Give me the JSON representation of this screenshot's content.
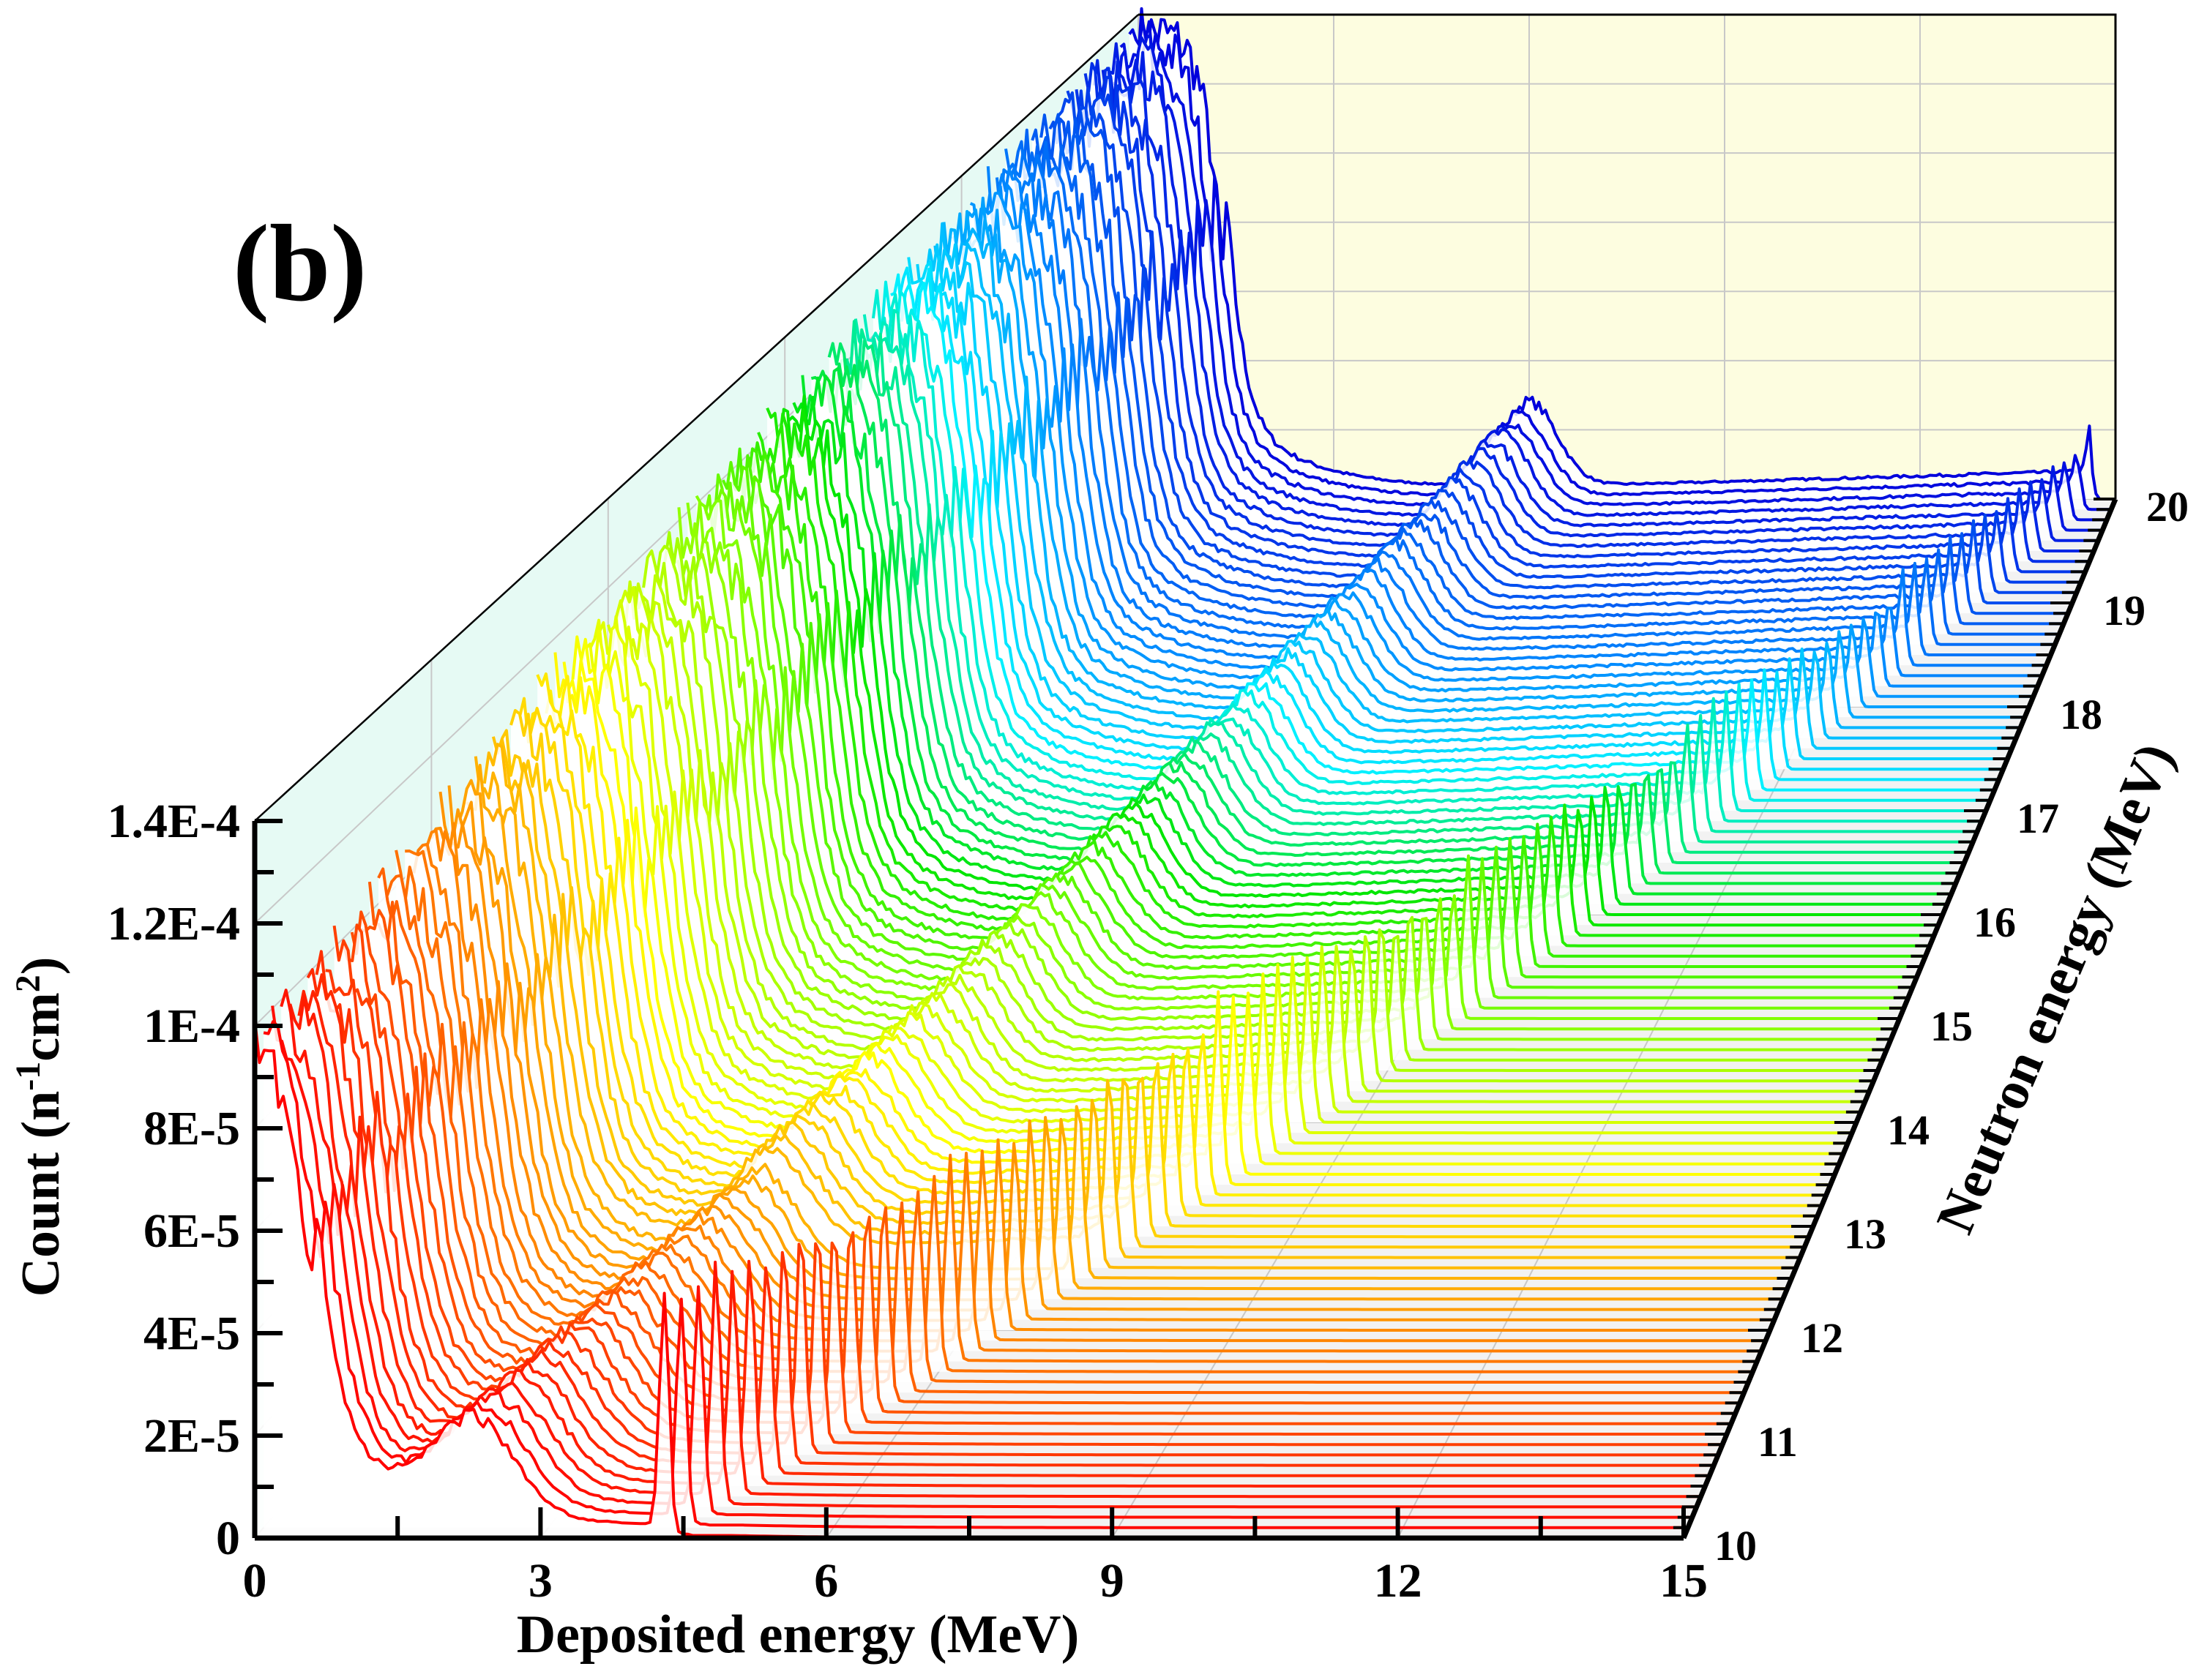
{
  "panel_label": "(b)",
  "chart_data": {
    "type": "waterfall-line",
    "title": "",
    "xlabel": "Deposited energy (MeV)",
    "ylabel_parts": {
      "base": "Count (n",
      "sup1": "-1",
      "mid": "cm",
      "sup2": "2",
      "end": ")"
    },
    "zlabel": "Neutron energy (MeV)",
    "xlim": [
      0,
      15
    ],
    "ylim": [
      0,
      0.00014
    ],
    "zlim": [
      10,
      20
    ],
    "x_ticks": [
      "0",
      "3",
      "6",
      "9",
      "12",
      "15"
    ],
    "x_tick_values": [
      0,
      3,
      6,
      9,
      12,
      15
    ],
    "y_ticks": [
      "0",
      "2E-5",
      "4E-5",
      "6E-5",
      "8E-5",
      "1E-4",
      "1.2E-4",
      "1.4E-4"
    ],
    "y_tick_values": [
      0,
      2e-05,
      4e-05,
      6e-05,
      8e-05,
      0.0001,
      0.00012,
      0.00014
    ],
    "z_ticks": [
      "10",
      "11",
      "12",
      "13",
      "14",
      "15",
      "16",
      "17",
      "18",
      "19",
      "20"
    ],
    "z_tick_values": [
      10,
      11,
      12,
      13,
      14,
      15,
      16,
      17,
      18,
      19,
      20
    ],
    "grid": true,
    "colormap": "jet (red at 10 MeV to blue at 20 MeV)",
    "series_count": 101,
    "neutron_energy_step": 0.1,
    "series_description": "One deposited-energy spectrum per neutron energy from 10 to 20 MeV; each has a low-energy continuum starting near 1E-4 (at 10 MeV) rising to ~1.4E-4+ plateau at high neutron energy, a falling edge, a broad recoil shoulder, and a sharp full-energy peak near (neutron energy - ~5.5 MeV).",
    "features": {
      "low_energy_plateau": {
        "at_10MeV": 0.0001,
        "at_20MeV": 0.000135
      },
      "falling_edge_MeV": {
        "at_10MeV": 0.6,
        "at_20MeV": 1.3
      },
      "sharp_peak_position_MeV": {
        "at_10MeV": 4.3,
        "at_20MeV": 14.6
      },
      "sharp_peak_height": {
        "at_10MeV": 4.5e-05,
        "at_13MeV": 4e-05,
        "at_16MeV": 3e-05,
        "at_18MeV": 2.2e-05,
        "at_20MeV": 1.2e-05
      },
      "broad_shoulder_MeV": {
        "at_10MeV": 2.3,
        "at_20MeV": 6.0
      }
    },
    "colors": {
      "front_wall": "#ffffff",
      "left_wall": "#e6faf4",
      "back_wall": "#fdfde0",
      "floor": "#f2f2f2",
      "grid": "#c8c8c8"
    }
  }
}
